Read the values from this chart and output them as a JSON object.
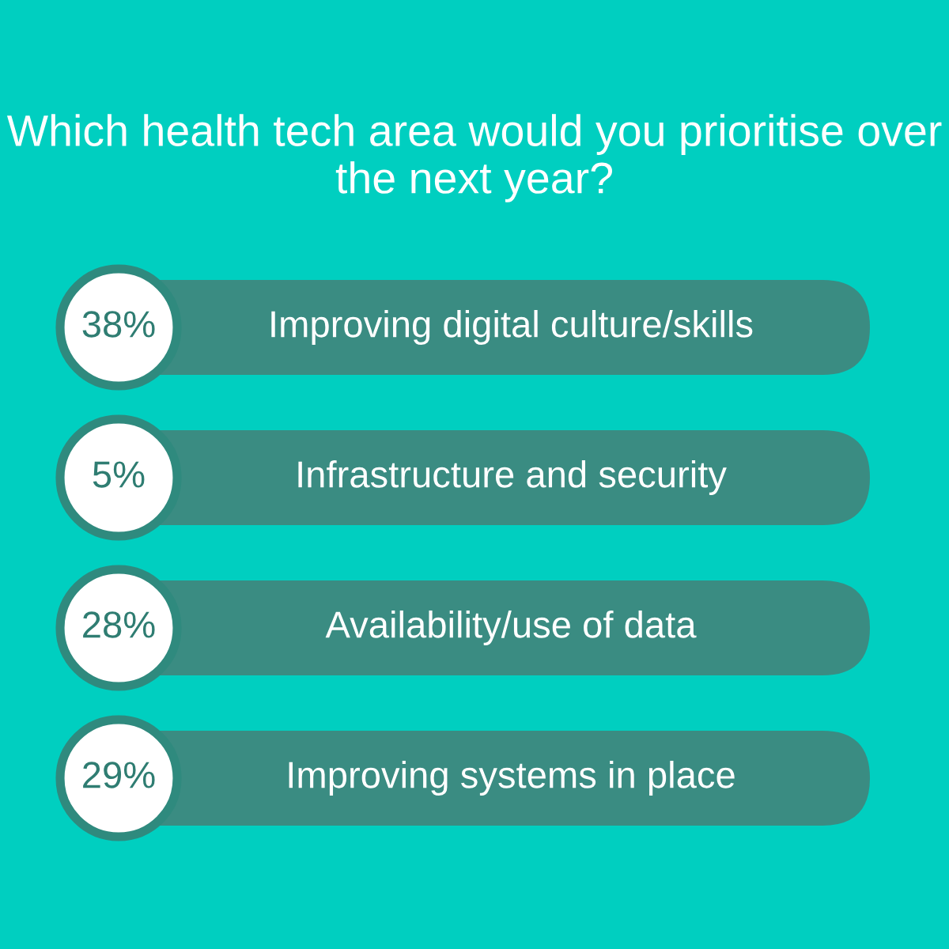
{
  "chart_data": {
    "type": "other",
    "title": "Which health tech area would you prioritise over the next year?",
    "categories": [
      "Improving digital culture/skills",
      "Infrastructure and security",
      "Availability/use of data",
      "Improving systems in place"
    ],
    "values": [
      38,
      5,
      28,
      29
    ],
    "value_labels": [
      "38%",
      "5%",
      "28%",
      "29%"
    ],
    "color": "#3a8c82"
  }
}
